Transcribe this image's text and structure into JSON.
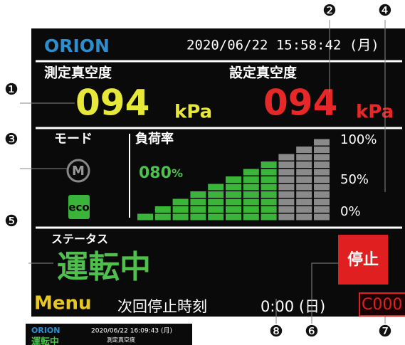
{
  "header": {
    "brand": "ORION",
    "datetime": "2020/06/22 15:58:42 (月)"
  },
  "measured": {
    "label": "測定真空度",
    "value": "094",
    "unit": "kPa"
  },
  "setpoint": {
    "label": "設定真空度",
    "value": "094",
    "unit": "kPa"
  },
  "mode": {
    "label": "モード",
    "icon": "M",
    "eco": "eco"
  },
  "load": {
    "label": "負荷率",
    "value": "080",
    "unit": "%",
    "scale": [
      "100%",
      "50%",
      "0%"
    ]
  },
  "status": {
    "label": "ステータス",
    "value": "運転中",
    "stop_button": "停止"
  },
  "footer": {
    "menu": "Menu",
    "next_stop_label": "次回停止時刻",
    "next_stop_time": "0:00 (日)",
    "code": "C000"
  },
  "callouts": [
    "❶",
    "❷",
    "❸",
    "❹",
    "❺",
    "❻",
    "❼",
    "❽"
  ],
  "thumbnail": {
    "brand": "ORION",
    "datetime": "2020/06/22 16:09:43 (月)",
    "status": "運転中",
    "label": "測定真空度"
  }
}
